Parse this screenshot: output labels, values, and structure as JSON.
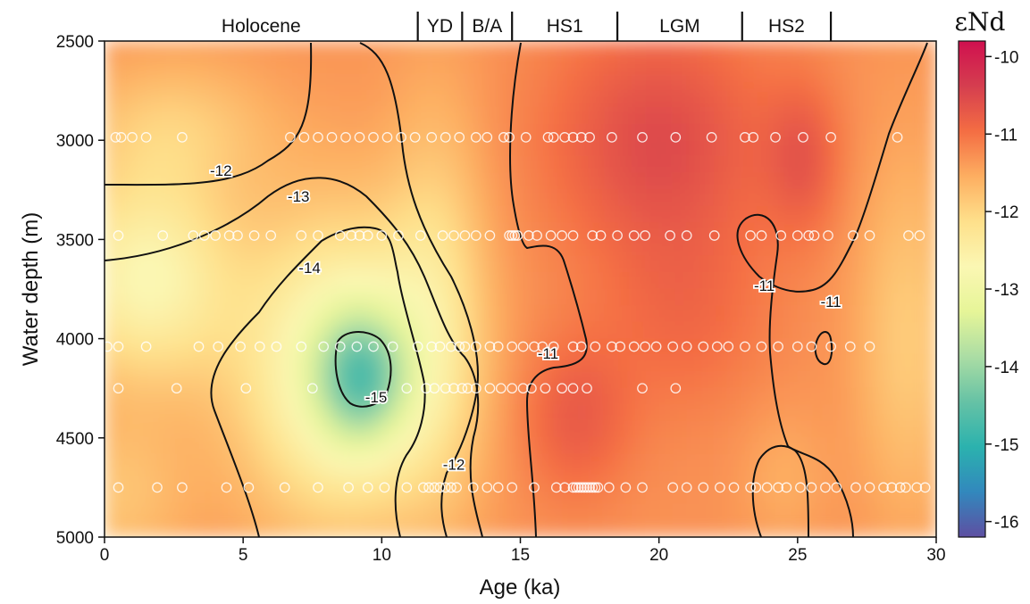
{
  "chart_data": {
    "type": "heatmap",
    "xlabel": "Age (ka)",
    "ylabel": "Water depth (m)",
    "xlim": [
      0,
      30
    ],
    "ylim": [
      5000,
      2500
    ],
    "x_ticks": [
      0,
      5,
      10,
      15,
      20,
      25,
      30
    ],
    "y_ticks": [
      2500,
      3000,
      3500,
      4000,
      4500,
      5000
    ],
    "colorbar": {
      "title": "εNd",
      "range": [
        -16.2,
        -9.8
      ],
      "ticks": [
        -10,
        -11,
        -12,
        -13,
        -14,
        -15,
        -16
      ],
      "colormap": [
        "#5e4fa2",
        "#3288bd",
        "#2bb2ae",
        "#66c2a5",
        "#abdda4",
        "#e6f598",
        "#fbf7b3",
        "#fee08b",
        "#fdae61",
        "#f46d43",
        "#d53e4f",
        "#d0104f"
      ]
    },
    "periods": [
      {
        "label": "Holocene",
        "start": 0,
        "end": 11.3
      },
      {
        "label": "YD",
        "start": 11.3,
        "end": 12.9
      },
      {
        "label": "B/A",
        "start": 12.9,
        "end": 14.7
      },
      {
        "label": "HS1",
        "start": 14.7,
        "end": 18.5
      },
      {
        "label": "LGM",
        "start": 18.5,
        "end": 23.0
      },
      {
        "label": "HS2",
        "start": 23.0,
        "end": 26.2
      }
    ],
    "period_boundaries": [
      11.3,
      12.9,
      14.7,
      18.5,
      23.0,
      26.2
    ],
    "contour_labels": [
      {
        "text": "-12",
        "x": 4.2,
        "y": 3180
      },
      {
        "text": "-13",
        "x": 7.0,
        "y": 3310
      },
      {
        "text": "-14",
        "x": 7.4,
        "y": 3670
      },
      {
        "text": "-15",
        "x": 9.8,
        "y": 4320
      },
      {
        "text": "-11",
        "x": 16.0,
        "y": 4100
      },
      {
        "text": "-12",
        "x": 12.6,
        "y": 4660
      },
      {
        "text": "-11",
        "x": 23.8,
        "y": 3760
      },
      {
        "text": "-11",
        "x": 26.2,
        "y": 3840
      }
    ],
    "sample_depths": [
      {
        "depth": 2985,
        "ages": [
          0.4,
          0.6,
          1.0,
          1.5,
          2.8,
          6.7,
          7.2,
          7.7,
          8.2,
          8.7,
          9.2,
          9.7,
          10.2,
          10.7,
          11.2,
          11.8,
          12.3,
          12.8,
          13.4,
          13.8,
          14.4,
          14.6,
          15.2,
          16.0,
          16.2,
          16.6,
          16.9,
          17.2,
          17.5,
          18.3,
          19.4,
          20.6,
          21.9,
          23.1,
          23.4,
          24.2,
          25.2,
          26.2,
          28.6
        ]
      },
      {
        "depth": 3480,
        "ages": [
          0.5,
          2.1,
          3.2,
          3.6,
          4.0,
          4.5,
          4.8,
          5.4,
          6.0,
          7.1,
          7.7,
          8.5,
          8.9,
          9.2,
          9.5,
          10.0,
          10.6,
          11.4,
          12.2,
          12.6,
          13.0,
          13.4,
          13.9,
          14.6,
          14.7,
          14.8,
          14.9,
          15.3,
          15.6,
          16.1,
          16.5,
          16.9,
          17.6,
          17.9,
          18.5,
          19.1,
          19.5,
          20.4,
          21.0,
          22.0,
          23.3,
          23.7,
          24.4,
          25.0,
          25.4,
          25.6,
          26.1,
          27.0,
          27.6,
          29.0,
          29.4
        ]
      },
      {
        "depth": 4040,
        "ages": [
          0.1,
          0.5,
          1.5,
          3.4,
          4.1,
          4.9,
          5.6,
          6.2,
          7.1,
          7.9,
          8.5,
          9.1,
          9.7,
          10.4,
          11.3,
          11.8,
          12.1,
          12.5,
          12.8,
          13.0,
          13.4,
          13.9,
          14.2,
          14.7,
          15.1,
          15.5,
          15.8,
          16.2,
          16.9,
          17.2,
          17.7,
          18.3,
          18.6,
          19.1,
          19.5,
          19.9,
          20.5,
          21.0,
          21.6,
          22.1,
          22.5,
          23.1,
          23.7,
          24.3,
          25.0,
          25.5,
          26.2,
          26.9,
          27.6
        ]
      },
      {
        "depth": 4250,
        "ages": [
          0.5,
          2.6,
          5.1,
          7.5,
          10.9,
          11.6,
          11.9,
          12.3,
          12.6,
          12.9,
          13.1,
          13.4,
          13.9,
          14.3,
          14.7,
          15.1,
          15.4,
          15.9,
          16.5,
          16.9,
          17.4,
          19.4,
          20.6
        ]
      },
      {
        "depth": 4750,
        "ages": [
          0.5,
          1.9,
          2.8,
          4.4,
          5.2,
          6.5,
          7.7,
          8.8,
          9.5,
          10.1,
          10.9,
          11.5,
          11.7,
          11.9,
          12.1,
          12.3,
          12.5,
          12.7,
          13.3,
          13.8,
          14.2,
          14.7,
          15.5,
          16.3,
          16.6,
          16.9,
          17.0,
          17.1,
          17.2,
          17.3,
          17.4,
          17.5,
          17.6,
          17.7,
          17.8,
          18.2,
          18.8,
          19.4,
          20.5,
          21.0,
          21.6,
          22.2,
          22.7,
          23.3,
          23.5,
          23.9,
          24.3,
          24.6,
          25.1,
          25.5,
          26.0,
          26.4,
          27.1,
          27.6,
          28.1,
          28.4,
          28.7,
          28.9,
          29.3,
          29.6
        ]
      }
    ]
  }
}
